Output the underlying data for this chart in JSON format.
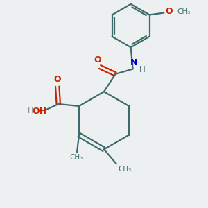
{
  "bg_color": "#edf0f0",
  "bond_color": "#3d6b6b",
  "oxygen_color": "#cc2200",
  "nitrogen_color": "#0000cc",
  "line_width": 1.6,
  "figsize": [
    3.0,
    3.0
  ],
  "dpi": 100,
  "xlim": [
    0,
    10
  ],
  "ylim": [
    0,
    10
  ]
}
